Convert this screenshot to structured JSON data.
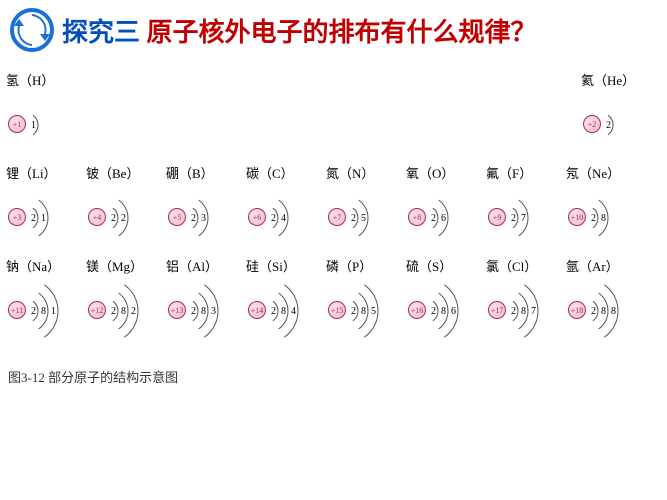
{
  "header": {
    "title_prefix": "探究三",
    "title_main": "原子核外电子的排布有什么规律？",
    "logo_color": "#1a6fd8"
  },
  "caption": "图3-12 部分原子的结构示意图",
  "nucleus_fill": "#f5b8c8",
  "nucleus_stroke": "#a03050",
  "arc_color": "#555555",
  "rows": [
    {
      "layout": "spread",
      "elements": [
        {
          "name": "氢",
          "symbol": "H",
          "z": 1,
          "shells": [
            1
          ]
        },
        {
          "name": "氦",
          "symbol": "He",
          "z": 2,
          "shells": [
            2
          ]
        }
      ]
    },
    {
      "layout": "normal",
      "elements": [
        {
          "name": "锂",
          "symbol": "Li",
          "z": 3,
          "shells": [
            2,
            1
          ]
        },
        {
          "name": "铍",
          "symbol": "Be",
          "z": 4,
          "shells": [
            2,
            2
          ]
        },
        {
          "name": "硼",
          "symbol": "B",
          "z": 5,
          "shells": [
            2,
            3
          ]
        },
        {
          "name": "碳",
          "symbol": "C",
          "z": 6,
          "shells": [
            2,
            4
          ]
        },
        {
          "name": "氮",
          "symbol": "N",
          "z": 7,
          "shells": [
            2,
            5
          ]
        },
        {
          "name": "氧",
          "symbol": "O",
          "z": 8,
          "shells": [
            2,
            6
          ]
        },
        {
          "name": "氟",
          "symbol": "F",
          "z": 9,
          "shells": [
            2,
            7
          ]
        },
        {
          "name": "氖",
          "symbol": "Ne",
          "z": 10,
          "shells": [
            2,
            8
          ]
        }
      ]
    },
    {
      "layout": "normal",
      "elements": [
        {
          "name": "钠",
          "symbol": "Na",
          "z": 11,
          "shells": [
            2,
            8,
            1
          ]
        },
        {
          "name": "镁",
          "symbol": "Mg",
          "z": 12,
          "shells": [
            2,
            8,
            2
          ]
        },
        {
          "name": "铝",
          "symbol": "Al",
          "z": 13,
          "shells": [
            2,
            8,
            3
          ]
        },
        {
          "name": "硅",
          "symbol": "Si",
          "z": 14,
          "shells": [
            2,
            8,
            4
          ]
        },
        {
          "name": "磷",
          "symbol": "P",
          "z": 15,
          "shells": [
            2,
            8,
            5
          ]
        },
        {
          "name": "硫",
          "symbol": "S",
          "z": 16,
          "shells": [
            2,
            8,
            6
          ]
        },
        {
          "name": "氯",
          "symbol": "Cl",
          "z": 17,
          "shells": [
            2,
            8,
            7
          ]
        },
        {
          "name": "氩",
          "symbol": "Ar",
          "z": 18,
          "shells": [
            2,
            8,
            8
          ]
        }
      ]
    }
  ]
}
